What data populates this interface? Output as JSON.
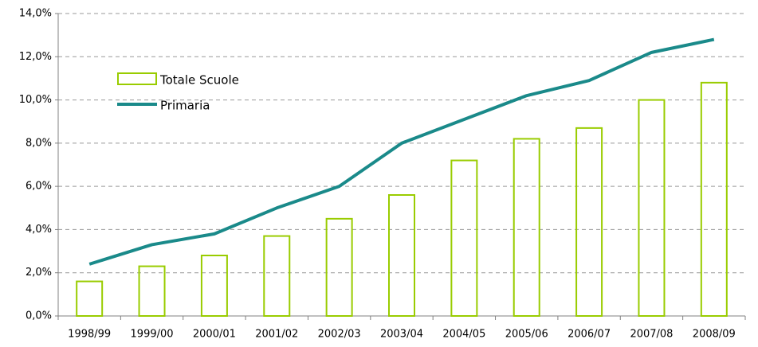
{
  "chart_data": {
    "type": "bar",
    "categories": [
      "1998/99",
      "1999/00",
      "2000/01",
      "2001/02",
      "2002/03",
      "2003/04",
      "2004/05",
      "2005/06",
      "2006/07",
      "2007/08",
      "2008/09"
    ],
    "series": [
      {
        "name": "Totale Scuole",
        "type": "bar",
        "color": "#99cc00",
        "values": [
          1.6,
          2.3,
          2.8,
          3.7,
          4.5,
          5.6,
          7.2,
          8.2,
          8.7,
          10.0,
          10.8
        ]
      },
      {
        "name": "Primaria",
        "type": "line",
        "color": "#1a8a8a",
        "values": [
          2.4,
          3.3,
          3.8,
          5.0,
          6.0,
          8.0,
          9.1,
          10.2,
          10.9,
          12.2,
          12.8
        ]
      }
    ],
    "ylim": [
      0,
      14
    ],
    "yticks": [
      {
        "value": 0,
        "label": "0,0%"
      },
      {
        "value": 2,
        "label": "2,0%"
      },
      {
        "value": 4,
        "label": "4,0%"
      },
      {
        "value": 6,
        "label": "6,0%"
      },
      {
        "value": 8,
        "label": "8,0%"
      },
      {
        "value": 10,
        "label": "10,0%"
      },
      {
        "value": 12,
        "label": "12,0%"
      },
      {
        "value": 14,
        "label": "14,0%"
      }
    ],
    "grid": true,
    "legend": "upper left"
  }
}
